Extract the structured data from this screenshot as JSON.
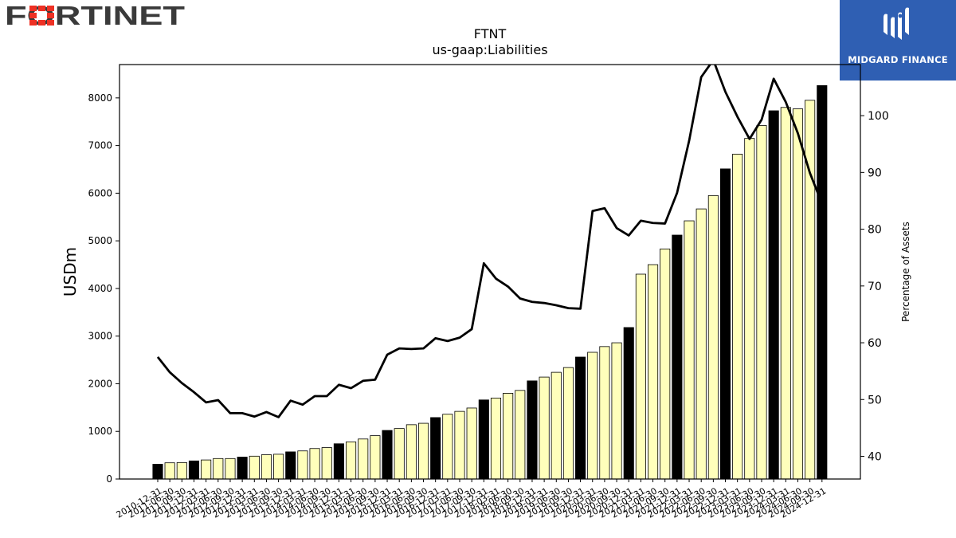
{
  "header": {
    "left_logo": {
      "text": "FORTINET",
      "icon": "fortinet-logo",
      "color": "#ee3124"
    },
    "right_logo": {
      "text": "MIDGARD FINANCE",
      "icon": "midgard-finance-logo",
      "background": "#2f5fb3"
    }
  },
  "chart_data": {
    "type": "bar",
    "title": "FTNT",
    "subtitle": "us-gaap:Liabilities",
    "ylabel": "USDm",
    "y2label": "Percentage of Assets",
    "ylim": [
      0,
      8700
    ],
    "y2lim": [
      36,
      109
    ],
    "yticks": [
      0,
      1000,
      2000,
      3000,
      4000,
      5000,
      6000,
      7000,
      8000
    ],
    "y2ticks": [
      40,
      50,
      60,
      70,
      80,
      90,
      100
    ],
    "grid": false,
    "legend": "none",
    "colors": {
      "bar_annual": "#000000",
      "bar_quarterly": "#ffffbb",
      "bar_edge": "#000000",
      "line": "#000000"
    },
    "categories": [
      "2010-12-31",
      "2011-06-30",
      "2011-09-30",
      "2011-12-31",
      "2012-03-31",
      "2012-06-30",
      "2012-09-30",
      "2012-12-31",
      "2013-03-31",
      "2013-06-30",
      "2013-09-30",
      "2013-12-31",
      "2014-03-31",
      "2014-06-30",
      "2014-09-30",
      "2014-12-31",
      "2015-03-31",
      "2015-06-30",
      "2015-09-30",
      "2015-12-31",
      "2016-03-31",
      "2016-06-30",
      "2016-09-30",
      "2016-12-31",
      "2017-03-31",
      "2017-06-30",
      "2017-09-30",
      "2017-12-31",
      "2018-03-31",
      "2018-06-30",
      "2018-09-30",
      "2018-12-31",
      "2019-03-31",
      "2019-06-30",
      "2019-09-30",
      "2019-12-31",
      "2020-03-31",
      "2020-06-30",
      "2020-09-30",
      "2020-12-31",
      "2021-03-31",
      "2021-06-30",
      "2021-09-30",
      "2021-12-31",
      "2022-03-31",
      "2022-06-30",
      "2022-09-30",
      "2022-12-31",
      "2023-03-31",
      "2023-06-30",
      "2023-09-30",
      "2023-12-31",
      "2024-03-31",
      "2024-06-30",
      "2024-09-30",
      "2024-12-31"
    ],
    "series": [
      {
        "values": [
          310,
          340,
          345,
          380,
          400,
          430,
          430,
          460,
          480,
          510,
          520,
          570,
          590,
          640,
          660,
          740,
          780,
          840,
          910,
          1020,
          1060,
          1140,
          1170,
          1290,
          1360,
          1420,
          1490,
          1660,
          1700,
          1800,
          1860,
          2060,
          2140,
          2240,
          2340,
          2560,
          2660,
          2780,
          2860,
          3180,
          4300,
          4500,
          4830,
          5120,
          5420,
          5670,
          5950,
          6510,
          6820,
          7150,
          7420,
          7730,
          7800,
          7770,
          7950,
          8260
        ],
        "annual": [
          1,
          0,
          0,
          1,
          0,
          0,
          0,
          1,
          0,
          0,
          0,
          1,
          0,
          0,
          0,
          1,
          0,
          0,
          0,
          1,
          0,
          0,
          0,
          1,
          0,
          0,
          0,
          1,
          0,
          0,
          0,
          1,
          0,
          0,
          0,
          1,
          0,
          0,
          0,
          1,
          0,
          0,
          0,
          1,
          0,
          0,
          0,
          1,
          0,
          0,
          0,
          1,
          0,
          0,
          0,
          1
        ]
      },
      {
        "axis": "right",
        "values": [
          57.5,
          54.8,
          52.9,
          51.3,
          49.5,
          49.9,
          47.6,
          47.6,
          47.0,
          47.8,
          46.9,
          49.8,
          49.1,
          50.6,
          50.6,
          52.6,
          52.0,
          53.3,
          53.5,
          57.9,
          59.0,
          58.9,
          59.0,
          60.8,
          60.3,
          60.9,
          62.4,
          74.0,
          71.3,
          69.9,
          67.8,
          67.2,
          67.0,
          66.6,
          66.1,
          66.0,
          83.2,
          83.7,
          80.2,
          78.9,
          81.5,
          81.1,
          81.0,
          86.4,
          95.6,
          106.8,
          109.8,
          104.2,
          99.8,
          95.9,
          99.3,
          106.5,
          102.4,
          96.9,
          89.9,
          84.5
        ]
      }
    ]
  }
}
